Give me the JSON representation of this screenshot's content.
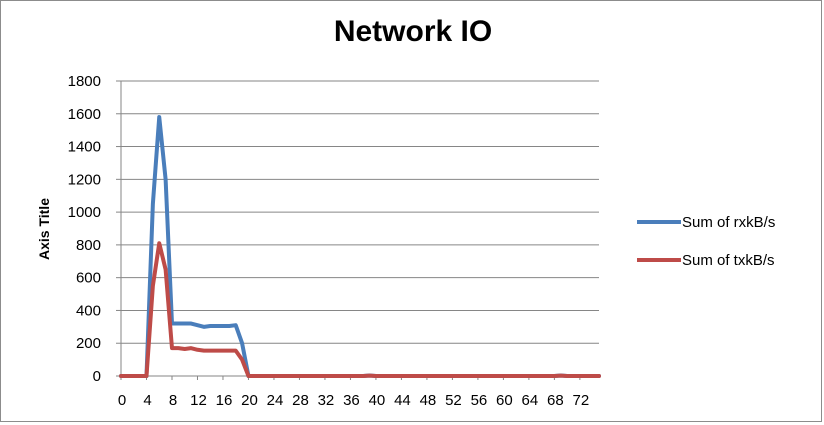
{
  "chart_data": {
    "type": "line",
    "title": "Network IO",
    "xlabel": "",
    "ylabel": "Axis Title",
    "xlim": [
      0,
      75
    ],
    "ylim": [
      0,
      1800
    ],
    "yticks": [
      0,
      200,
      400,
      600,
      800,
      1000,
      1200,
      1400,
      1600,
      1800
    ],
    "xticks": [
      0,
      4,
      8,
      12,
      16,
      20,
      24,
      28,
      32,
      36,
      40,
      44,
      48,
      52,
      56,
      60,
      64,
      68,
      72
    ],
    "grid": true,
    "legend_position": "right",
    "x": [
      0,
      1,
      2,
      3,
      4,
      5,
      6,
      7,
      8,
      9,
      10,
      11,
      12,
      13,
      14,
      15,
      16,
      17,
      18,
      19,
      20,
      21,
      22,
      23,
      24,
      25,
      26,
      27,
      28,
      29,
      30,
      31,
      32,
      33,
      34,
      35,
      36,
      37,
      38,
      39,
      40,
      41,
      42,
      43,
      44,
      45,
      46,
      47,
      48,
      49,
      50,
      51,
      52,
      53,
      54,
      55,
      56,
      57,
      58,
      59,
      60,
      61,
      62,
      63,
      64,
      65,
      66,
      67,
      68,
      69,
      70,
      71,
      72,
      73,
      74,
      75
    ],
    "series": [
      {
        "name": "Sum of rxkB/s",
        "color": "#4a7ebb",
        "values": [
          0,
          0,
          0,
          0,
          0,
          1050,
          1580,
          1200,
          320,
          320,
          320,
          320,
          310,
          300,
          305,
          305,
          305,
          305,
          310,
          200,
          0,
          0,
          0,
          0,
          0,
          0,
          0,
          0,
          0,
          0,
          0,
          0,
          0,
          0,
          0,
          0,
          0,
          0,
          0,
          3,
          0,
          0,
          0,
          0,
          0,
          0,
          0,
          0,
          0,
          0,
          0,
          0,
          0,
          0,
          0,
          0,
          0,
          0,
          0,
          0,
          0,
          0,
          0,
          0,
          0,
          0,
          0,
          0,
          0,
          3,
          0,
          0,
          0,
          0,
          0,
          0
        ]
      },
      {
        "name": "Sum of txkB/s",
        "color": "#be4b48",
        "values": [
          0,
          0,
          0,
          0,
          0,
          550,
          810,
          650,
          170,
          170,
          165,
          170,
          160,
          155,
          155,
          155,
          155,
          155,
          155,
          100,
          0,
          0,
          0,
          0,
          0,
          0,
          0,
          0,
          0,
          0,
          0,
          0,
          0,
          0,
          0,
          0,
          0,
          0,
          0,
          2,
          0,
          0,
          0,
          0,
          0,
          0,
          0,
          0,
          0,
          0,
          0,
          0,
          0,
          0,
          0,
          0,
          0,
          0,
          0,
          0,
          0,
          0,
          0,
          0,
          0,
          0,
          0,
          0,
          0,
          2,
          0,
          0,
          0,
          0,
          0,
          0
        ]
      }
    ]
  }
}
